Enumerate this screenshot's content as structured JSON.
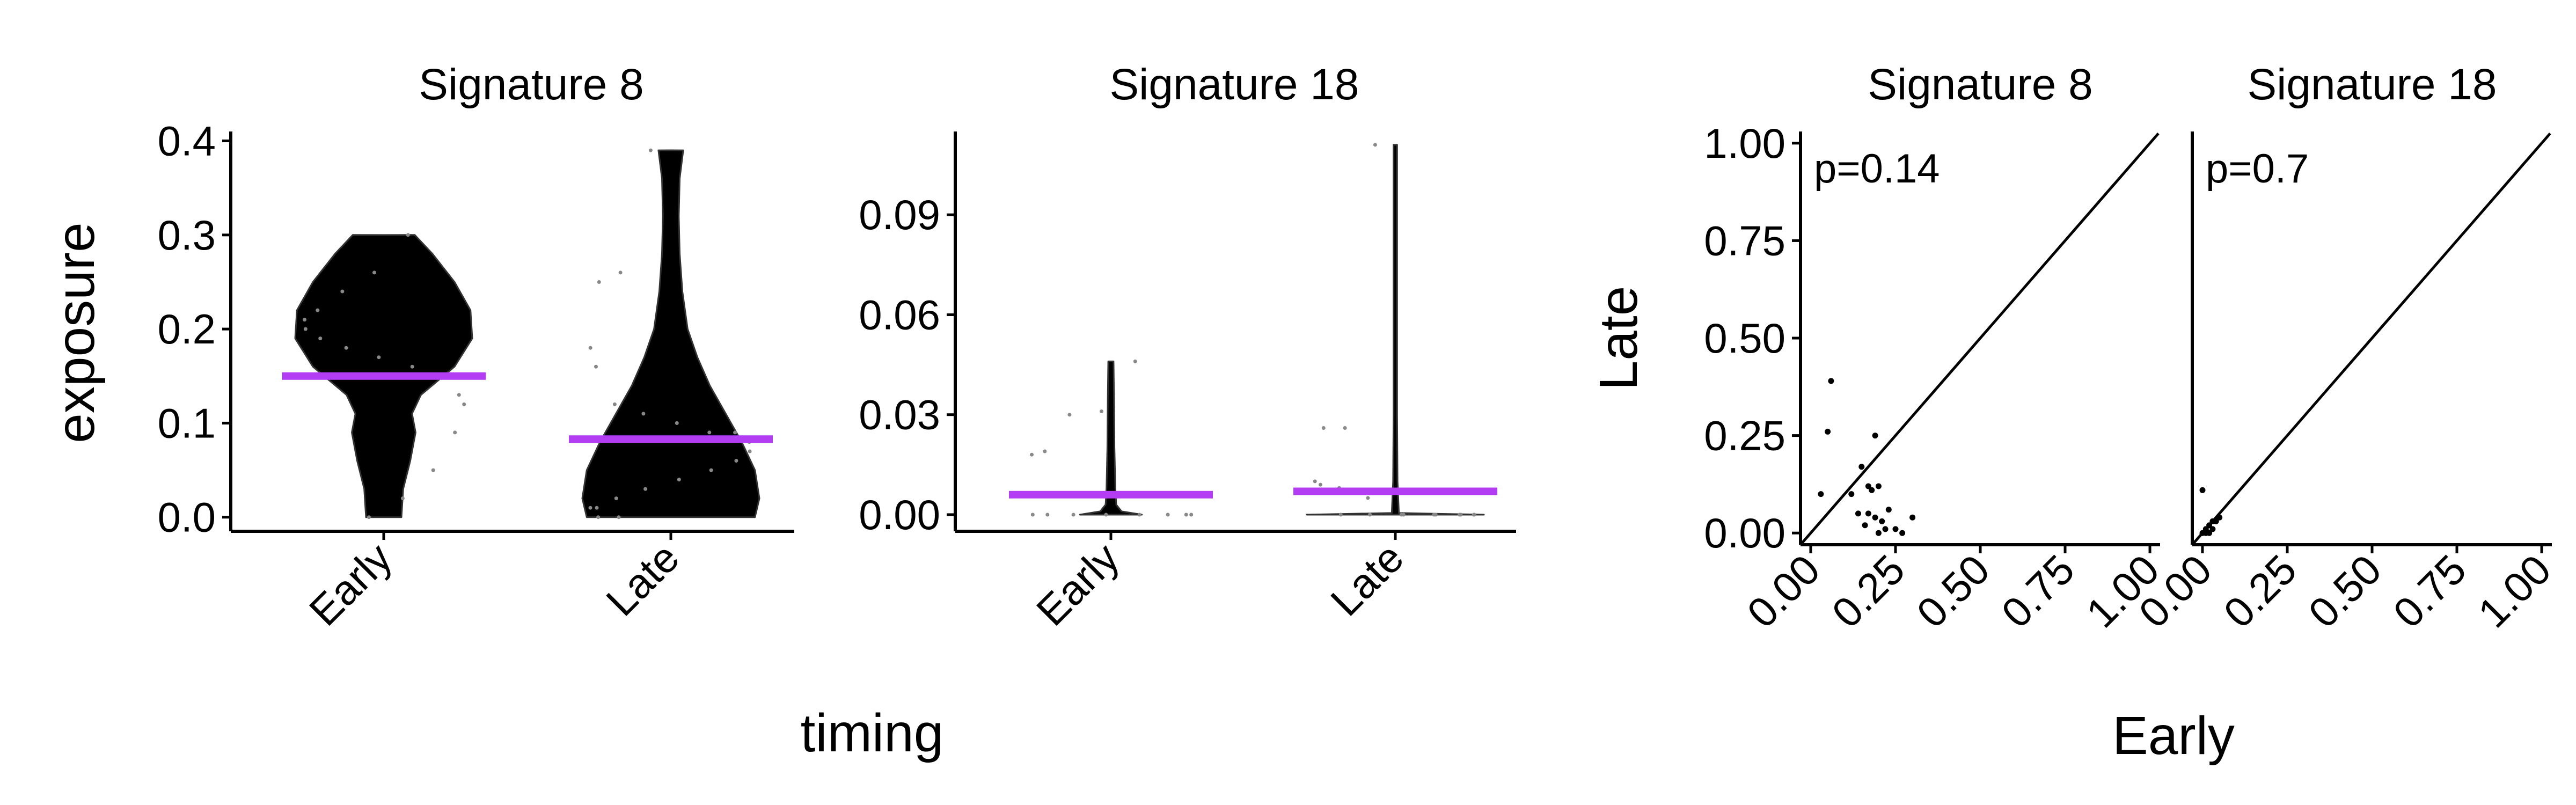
{
  "chart_data": [
    {
      "type": "violin",
      "title": "Signature 8",
      "xlabel": "timing",
      "ylabel": "exposure",
      "categories": [
        "Early",
        "Late"
      ],
      "yticks": [
        "0.0",
        "0.1",
        "0.2",
        "0.3",
        "0.4"
      ],
      "ylim": [
        -0.015,
        0.41
      ],
      "means": [
        0.15,
        0.083
      ],
      "violins": [
        {
          "category": "Early",
          "min": 0.0,
          "max": 0.3,
          "profile": [
            [
              0.0,
              0.2
            ],
            [
              0.03,
              0.22
            ],
            [
              0.06,
              0.3
            ],
            [
              0.09,
              0.36
            ],
            [
              0.11,
              0.32
            ],
            [
              0.13,
              0.42
            ],
            [
              0.16,
              0.8
            ],
            [
              0.19,
              1.0
            ],
            [
              0.22,
              0.98
            ],
            [
              0.25,
              0.8
            ],
            [
              0.28,
              0.55
            ],
            [
              0.3,
              0.35
            ]
          ]
        },
        {
          "category": "Late",
          "min": 0.0,
          "max": 0.39,
          "profile": [
            [
              0.0,
              0.95
            ],
            [
              0.02,
              1.0
            ],
            [
              0.05,
              0.95
            ],
            [
              0.08,
              0.8
            ],
            [
              0.11,
              0.62
            ],
            [
              0.14,
              0.44
            ],
            [
              0.17,
              0.3
            ],
            [
              0.2,
              0.19
            ],
            [
              0.24,
              0.13
            ],
            [
              0.28,
              0.1
            ],
            [
              0.32,
              0.09
            ],
            [
              0.36,
              0.1
            ],
            [
              0.39,
              0.14
            ]
          ]
        }
      ],
      "points": [
        {
          "category": "Early",
          "values": [
            0.3,
            0.26,
            0.24,
            0.22,
            0.21,
            0.2,
            0.19,
            0.18,
            0.17,
            0.16,
            0.15,
            0.13,
            0.12,
            0.09,
            0.05,
            0.02,
            0.0
          ]
        },
        {
          "category": "Late",
          "values": [
            0.39,
            0.26,
            0.25,
            0.18,
            0.16,
            0.12,
            0.11,
            0.1,
            0.09,
            0.09,
            0.08,
            0.07,
            0.06,
            0.05,
            0.04,
            0.03,
            0.02,
            0.01,
            0.01,
            0.0,
            0.0
          ]
        }
      ]
    },
    {
      "type": "violin",
      "title": "Signature 18",
      "xlabel": "timing",
      "ylabel": "exposure",
      "categories": [
        "Early",
        "Late"
      ],
      "yticks": [
        "0.00",
        "0.03",
        "0.06",
        "0.09"
      ],
      "ylim": [
        -0.005,
        0.115
      ],
      "means": [
        0.006,
        0.007
      ],
      "violins": [
        {
          "category": "Early",
          "min": 0.0,
          "max": 0.046,
          "profile": [
            [
              0.0,
              0.35
            ],
            [
              0.001,
              0.12
            ],
            [
              0.003,
              0.06
            ],
            [
              0.008,
              0.05
            ],
            [
              0.02,
              0.04
            ],
            [
              0.035,
              0.035
            ],
            [
              0.046,
              0.03
            ]
          ]
        },
        {
          "category": "Late",
          "min": 0.0,
          "max": 0.111,
          "profile": [
            [
              0.0,
              1.0
            ],
            [
              0.0005,
              0.04
            ],
            [
              0.01,
              0.025
            ],
            [
              0.03,
              0.02
            ],
            [
              0.06,
              0.02
            ],
            [
              0.09,
              0.02
            ],
            [
              0.111,
              0.02
            ]
          ]
        }
      ],
      "points": [
        {
          "category": "Early",
          "values": [
            0.046,
            0.031,
            0.03,
            0.019,
            0.018,
            0.0,
            0.0,
            0.0,
            0.0,
            0.0,
            0.0,
            0.0,
            0.0
          ]
        },
        {
          "category": "Late",
          "values": [
            0.111,
            0.026,
            0.026,
            0.01,
            0.009,
            0.008,
            0.005,
            0.0,
            0.0,
            0.0,
            0.0,
            0.0,
            0.0,
            0.0,
            0.0,
            0.0,
            0.0
          ]
        }
      ]
    },
    {
      "type": "scatter",
      "title": "Signature 8",
      "xlabel": "Early",
      "ylabel": "Late",
      "annotation": "p=0.14",
      "ticks": [
        "0.00",
        "0.25",
        "0.50",
        "0.75",
        "1.00"
      ],
      "xlim": [
        -0.03,
        1.03
      ],
      "ylim": [
        -0.03,
        1.03
      ],
      "reference_line": "y = x",
      "x": [
        0.06,
        0.05,
        0.03,
        0.19,
        0.15,
        0.17,
        0.18,
        0.2,
        0.12,
        0.14,
        0.17,
        0.19,
        0.21,
        0.22,
        0.25,
        0.3,
        0.16,
        0.2,
        0.27,
        0.23
      ],
      "y": [
        0.39,
        0.26,
        0.1,
        0.25,
        0.17,
        0.12,
        0.11,
        0.12,
        0.1,
        0.05,
        0.05,
        0.04,
        0.03,
        0.01,
        0.01,
        0.04,
        0.02,
        0.0,
        0.0,
        0.06
      ]
    },
    {
      "type": "scatter",
      "title": "Signature 18",
      "xlabel": "Early",
      "ylabel": "Late",
      "annotation": "p=0.7",
      "ticks": [
        "0.00",
        "0.25",
        "0.50",
        "0.75",
        "1.00"
      ],
      "xlim": [
        -0.03,
        1.03
      ],
      "ylim": [
        -0.03,
        1.03
      ],
      "reference_line": "y = x",
      "x": [
        0.0,
        0.0,
        0.01,
        0.02,
        0.03,
        0.04,
        0.05,
        0.03,
        0.02,
        0.01
      ],
      "y": [
        0.11,
        0.0,
        0.01,
        0.02,
        0.03,
        0.03,
        0.04,
        0.01,
        0.0,
        0.0
      ]
    }
  ],
  "colors": {
    "mean_line": "#b23df2",
    "violin_fill": "#000000",
    "point": "#888888",
    "scatter_point": "#000000"
  }
}
